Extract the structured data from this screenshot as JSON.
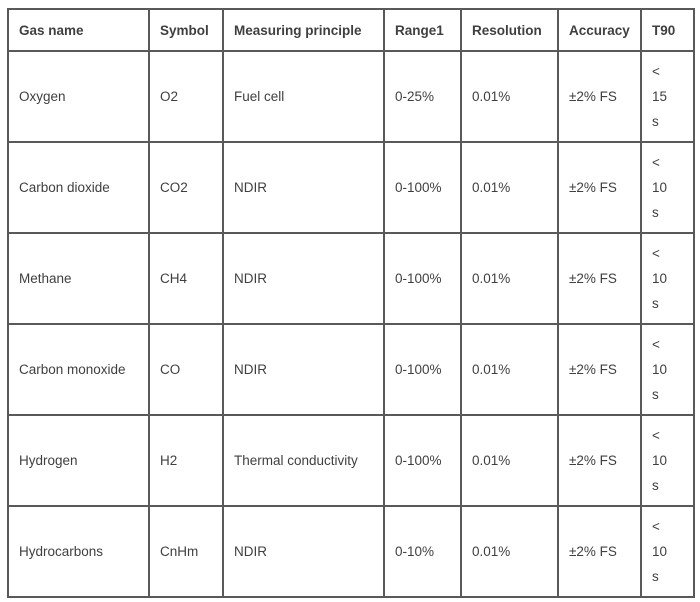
{
  "table": {
    "title": "gas-analyzer-specifications",
    "columns": [
      {
        "key": "gas",
        "label": "Gas name"
      },
      {
        "key": "symbol",
        "label": "Symbol"
      },
      {
        "key": "principle",
        "label": "Measuring principle"
      },
      {
        "key": "range",
        "label": "Range1"
      },
      {
        "key": "resolution",
        "label": "Resolution"
      },
      {
        "key": "accuracy",
        "label": "Accuracy"
      },
      {
        "key": "t90",
        "label": "T90"
      }
    ],
    "rows": [
      {
        "gas": "Oxygen",
        "symbol": "O2",
        "principle": "Fuel cell",
        "range": "0-25%",
        "resolution": "0.01%",
        "accuracy": "±2% FS",
        "t90": "< 15 s"
      },
      {
        "gas": "Carbon dioxide",
        "symbol": "CO2",
        "principle": "NDIR",
        "range": "0-100%",
        "resolution": "0.01%",
        "accuracy": "±2% FS",
        "t90": "< 10 s"
      },
      {
        "gas": "Methane",
        "symbol": "CH4",
        "principle": "NDIR",
        "range": "0-100%",
        "resolution": "0.01%",
        "accuracy": "±2% FS",
        "t90": "< 10 s"
      },
      {
        "gas": "Carbon monoxide",
        "symbol": "CO",
        "principle": "NDIR",
        "range": "0-100%",
        "resolution": "0.01%",
        "accuracy": "±2% FS",
        "t90": "< 10 s"
      },
      {
        "gas": "Hydrogen",
        "symbol": "H2",
        "principle": "Thermal conductivity",
        "range": "0-100%",
        "resolution": "0.01%",
        "accuracy": "±2% FS",
        "t90": "< 10 s"
      },
      {
        "gas": "Hydrocarbons",
        "symbol": "CnHm",
        "principle": "NDIR",
        "range": "0-10%",
        "resolution": "0.01%",
        "accuracy": "±2% FS",
        "t90": "< 10 s"
      }
    ],
    "colors": {
      "border": "#595959",
      "text": "#3f3f3f",
      "background": "#ffffff"
    }
  }
}
